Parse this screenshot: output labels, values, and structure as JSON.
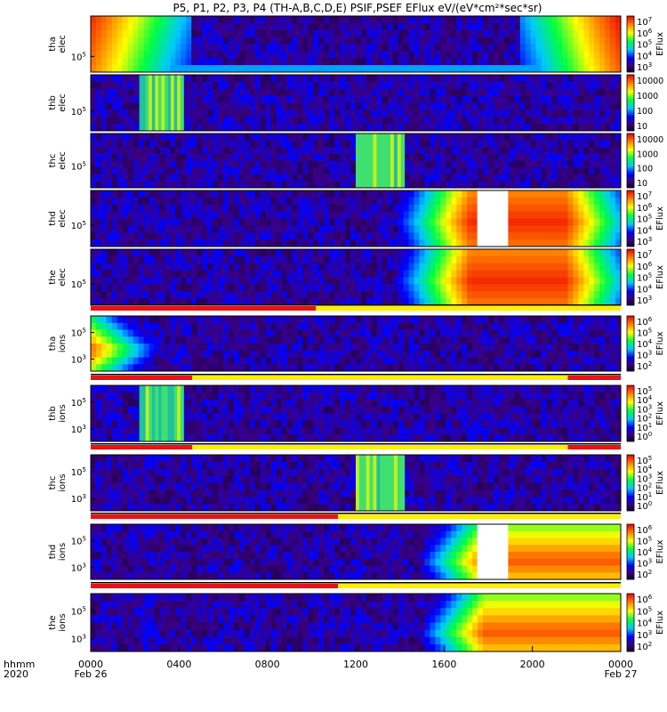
{
  "title": "P5, P1, P2, P3, P4  (TH-A,B,C,D,E)  PSIF,PSEF EFlux eV/(eV*cm²*sec*sr)",
  "chart_data": {
    "type": "heatmap",
    "description_axis": "time",
    "x_axis": {
      "row_label_line1": "hhmm",
      "row_label_line2": "2020",
      "range_hours": [
        0,
        24
      ],
      "ticks": [
        {
          "hour": 0,
          "label": "0000",
          "sublabel": "Feb 26"
        },
        {
          "hour": 4,
          "label": "0400",
          "sublabel": ""
        },
        {
          "hour": 8,
          "label": "0800",
          "sublabel": ""
        },
        {
          "hour": 12,
          "label": "1200",
          "sublabel": ""
        },
        {
          "hour": 16,
          "label": "1600",
          "sublabel": ""
        },
        {
          "hour": 20,
          "label": "2000",
          "sublabel": ""
        },
        {
          "hour": 24,
          "label": "0000",
          "sublabel": "Feb 27"
        }
      ]
    },
    "panels": [
      {
        "probe": "tha",
        "species": "elec",
        "ylabel1": "tha",
        "ylabel2": "elec",
        "yticks": [
          {
            "exp": 5,
            "frac": 0.72
          }
        ],
        "colorbar": {
          "label": "EFlux",
          "ticks": [
            "10^7",
            "10^6",
            "10^5",
            "10^4",
            "10^3"
          ]
        },
        "gaps": [],
        "bursts": []
      },
      {
        "probe": "thb",
        "species": "elec",
        "ylabel1": "thb",
        "ylabel2": "elec",
        "yticks": [
          {
            "exp": 5,
            "frac": 0.65
          }
        ],
        "colorbar": {
          "label": "",
          "ticks": [
            "10000",
            "1000",
            "100",
            "10"
          ]
        },
        "gaps": [],
        "bursts": [
          {
            "start_hour": 2.2,
            "end_hour": 4.2
          }
        ]
      },
      {
        "probe": "thc",
        "species": "elec",
        "ylabel1": "thc",
        "ylabel2": "elec",
        "yticks": [
          {
            "exp": 5,
            "frac": 0.6
          }
        ],
        "colorbar": {
          "label": "",
          "ticks": [
            "10000",
            "1000",
            "100",
            "10"
          ]
        },
        "gaps": [],
        "bursts": [
          {
            "start_hour": 12.0,
            "end_hour": 14.2
          }
        ]
      },
      {
        "probe": "thd",
        "species": "elec",
        "ylabel1": "thd",
        "ylabel2": "elec",
        "yticks": [
          {
            "exp": 5,
            "frac": 0.62
          }
        ],
        "colorbar": {
          "label": "EFlux",
          "ticks": [
            "10^7",
            "10^6",
            "10^5",
            "10^4",
            "10^3"
          ]
        },
        "gaps": [
          {
            "start_hour": 17.5,
            "end_hour": 18.9
          }
        ],
        "bursts": []
      },
      {
        "probe": "the",
        "species": "elec",
        "ylabel1": "the",
        "ylabel2": "elec",
        "yticks": [
          {
            "exp": 5,
            "frac": 0.62
          }
        ],
        "colorbar": {
          "label": "EFlux",
          "ticks": [
            "10^7",
            "10^6",
            "10^5",
            "10^4",
            "10^3"
          ]
        },
        "gaps": [],
        "bursts": []
      },
      {
        "probe": "tha",
        "species": "ions",
        "ylabel1": "tha",
        "ylabel2": "ions",
        "yticks": [
          {
            "exp": 5,
            "frac": 0.3
          },
          {
            "exp": 3,
            "frac": 0.78
          }
        ],
        "colorbar": {
          "label": "EFlux",
          "ticks": [
            "10^6",
            "10^5",
            "10^4",
            "10^3",
            "10^2"
          ]
        },
        "gaps": [],
        "bursts": []
      },
      {
        "probe": "thb",
        "species": "ions",
        "ylabel1": "thb",
        "ylabel2": "ions",
        "yticks": [
          {
            "exp": 5,
            "frac": 0.3
          },
          {
            "exp": 3,
            "frac": 0.78
          }
        ],
        "colorbar": {
          "label": "EFlux",
          "ticks": [
            "10^5",
            "10^4",
            "10^3",
            "10^2",
            "10^1",
            "10^0"
          ]
        },
        "gaps": [],
        "bursts": [
          {
            "start_hour": 2.2,
            "end_hour": 4.2
          }
        ]
      },
      {
        "probe": "thc",
        "species": "ions",
        "ylabel1": "thc",
        "ylabel2": "ions",
        "yticks": [
          {
            "exp": 5,
            "frac": 0.3
          },
          {
            "exp": 3,
            "frac": 0.78
          }
        ],
        "colorbar": {
          "label": "EFlux",
          "ticks": [
            "10^5",
            "10^4",
            "10^3",
            "10^2",
            "10^1",
            "10^0"
          ]
        },
        "gaps": [],
        "bursts": [
          {
            "start_hour": 12.0,
            "end_hour": 14.2
          }
        ]
      },
      {
        "probe": "thd",
        "species": "ions",
        "ylabel1": "thd",
        "ylabel2": "ions",
        "yticks": [
          {
            "exp": 5,
            "frac": 0.3
          },
          {
            "exp": 3,
            "frac": 0.78
          }
        ],
        "colorbar": {
          "label": "EFlux",
          "ticks": [
            "10^6",
            "10^5",
            "10^4",
            "10^3",
            "10^2"
          ]
        },
        "gaps": [
          {
            "start_hour": 17.5,
            "end_hour": 18.9
          }
        ],
        "bursts": []
      },
      {
        "probe": "the",
        "species": "ions",
        "ylabel1": "the",
        "ylabel2": "ions",
        "yticks": [
          {
            "exp": 5,
            "frac": 0.3
          },
          {
            "exp": 3,
            "frac": 0.78
          }
        ],
        "colorbar": {
          "label": "EFlux",
          "ticks": [
            "10^6",
            "10^5",
            "10^4",
            "10^3",
            "10^2"
          ]
        },
        "gaps": [],
        "bursts": []
      }
    ],
    "mode_bars": [
      {
        "after_panel": 4,
        "segments": [
          {
            "start_hour": 0,
            "end_hour": 10.2,
            "mode": "red"
          },
          {
            "start_hour": 10.2,
            "end_hour": 24,
            "mode": "yellow"
          }
        ]
      },
      {
        "after_panel": 5,
        "segments": [
          {
            "start_hour": 0,
            "end_hour": 4.6,
            "mode": "red"
          },
          {
            "start_hour": 4.6,
            "end_hour": 21.6,
            "mode": "yellow"
          },
          {
            "start_hour": 21.6,
            "end_hour": 24,
            "mode": "red"
          }
        ]
      },
      {
        "after_panel": 6,
        "segments": [
          {
            "start_hour": 0,
            "end_hour": 4.6,
            "mode": "red"
          },
          {
            "start_hour": 4.6,
            "end_hour": 21.6,
            "mode": "yellow"
          },
          {
            "start_hour": 21.6,
            "end_hour": 24,
            "mode": "red"
          }
        ]
      },
      {
        "after_panel": 7,
        "segments": [
          {
            "start_hour": 0,
            "end_hour": 11.2,
            "mode": "red"
          },
          {
            "start_hour": 11.2,
            "end_hour": 24,
            "mode": "yellow"
          }
        ]
      },
      {
        "after_panel": 8,
        "segments": [
          {
            "start_hour": 0,
            "end_hour": 11.2,
            "mode": "red"
          },
          {
            "start_hour": 11.2,
            "end_hour": 24,
            "mode": "yellow"
          }
        ]
      }
    ],
    "colors": {
      "red": "#ee1111",
      "yellow": "#ffee00",
      "low": "#200040",
      "mid": "#1030ff",
      "high": "#ee2010"
    }
  }
}
